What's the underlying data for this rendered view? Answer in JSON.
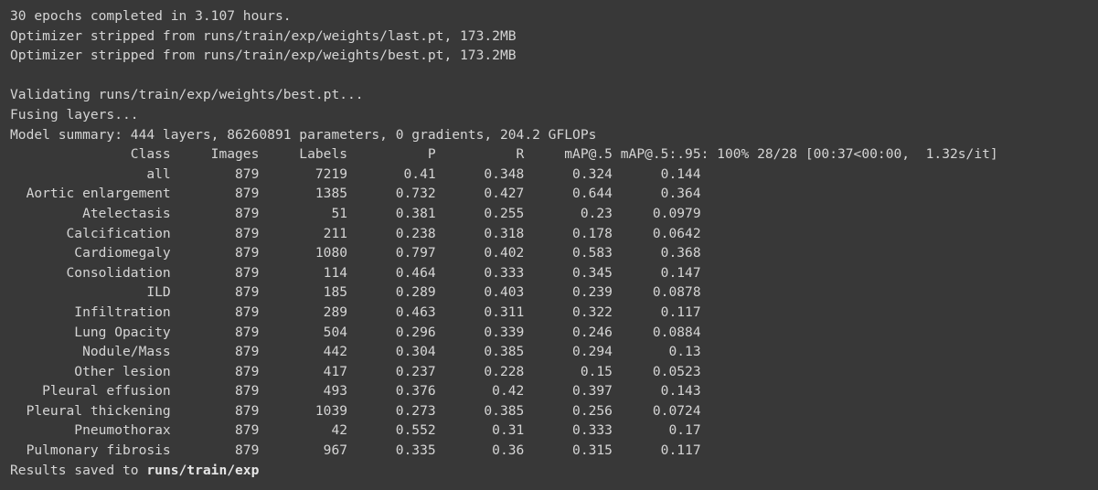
{
  "header_lines": [
    "30 epochs completed in 3.107 hours.",
    "Optimizer stripped from runs/train/exp/weights/last.pt, 173.2MB",
    "Optimizer stripped from runs/train/exp/weights/best.pt, 173.2MB"
  ],
  "validation_lines": [
    "Validating runs/train/exp/weights/best.pt...",
    "Fusing layers...",
    "Model summary: 444 layers, 86260891 parameters, 0 gradients, 204.2 GFLOPs"
  ],
  "table": {
    "header_line": "               Class     Images     Labels          P          R     mAP@.5 mAP@.5:.95: 100% 28/28 [00:37<00:00,  1.32s/it]",
    "rows": [
      "                 all        879       7219       0.41      0.348      0.324      0.144",
      "  Aortic enlargement        879       1385      0.732      0.427      0.644      0.364",
      "         Atelectasis        879         51      0.381      0.255       0.23     0.0979",
      "       Calcification        879        211      0.238      0.318      0.178     0.0642",
      "        Cardiomegaly        879       1080      0.797      0.402      0.583      0.368",
      "       Consolidation        879        114      0.464      0.333      0.345      0.147",
      "                 ILD        879        185      0.289      0.403      0.239     0.0878",
      "        Infiltration        879        289      0.463      0.311      0.322      0.117",
      "        Lung Opacity        879        504      0.296      0.339      0.246     0.0884",
      "         Nodule/Mass        879        442      0.304      0.385      0.294       0.13",
      "        Other lesion        879        417      0.237      0.228       0.15     0.0523",
      "    Pleural effusion        879        493      0.376       0.42      0.397      0.143",
      "  Pleural thickening        879       1039      0.273      0.385      0.256     0.0724",
      "        Pneumothorax        879         42      0.552       0.31      0.333       0.17",
      "  Pulmonary fibrosis        879        967      0.335       0.36      0.315      0.117"
    ]
  },
  "results": {
    "prefix": "Results saved to ",
    "path": "runs/train/exp"
  }
}
